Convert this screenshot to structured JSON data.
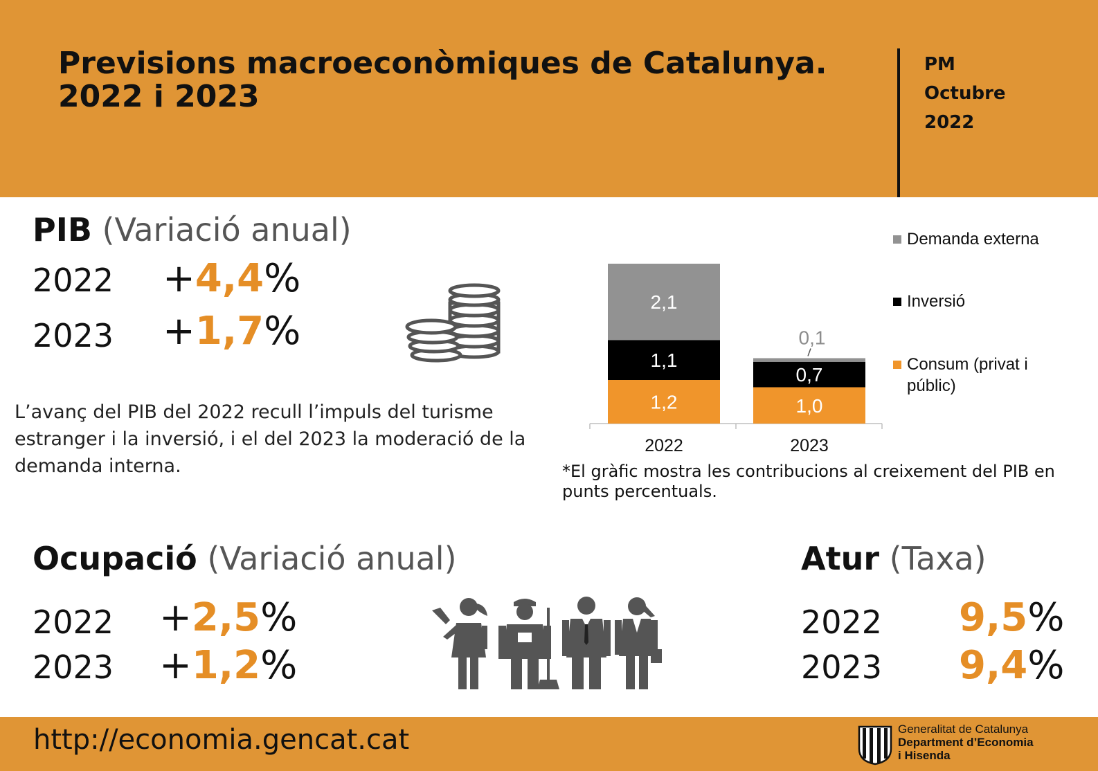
{
  "header": {
    "title_line1": "Previsions macroeconòmiques de Catalunya.",
    "title_line2": "2022 i 2023",
    "meta": [
      "PM",
      "Octubre",
      "2022"
    ]
  },
  "pib": {
    "title": "PIB",
    "subtitle": "(Variació anual)",
    "rows": [
      {
        "year": "2022",
        "sign": "+",
        "value": "4,4",
        "unit": "%"
      },
      {
        "year": "2023",
        "sign": "+",
        "value": "1,7",
        "unit": "%"
      }
    ],
    "description": "L’avanç del PIB del 2022 recull l’impuls del turisme estranger i la inversió, i el del 2023 la moderació de la demanda interna.",
    "note": "*El gràfic mostra les contribucions al creixement del PIB en punts percentuals."
  },
  "ocupacio": {
    "title": "Ocupació",
    "subtitle": "(Variació anual)",
    "rows": [
      {
        "year": "2022",
        "sign": "+",
        "value": "2,5",
        "unit": "%"
      },
      {
        "year": "2023",
        "sign": "+",
        "value": "1,2",
        "unit": "%"
      }
    ]
  },
  "atur": {
    "title": "Atur",
    "subtitle": "(Taxa)",
    "rows": [
      {
        "year": "2022",
        "value": "9,5",
        "unit": "%"
      },
      {
        "year": "2023",
        "value": "9,4",
        "unit": "%"
      }
    ]
  },
  "footer": {
    "url": "http://economia.gencat.cat",
    "logo_line1": "Generalitat de Catalunya",
    "logo_line2": "Department d’Economia",
    "logo_line3": "i Hisenda"
  },
  "icons": {
    "pib": "coins-stack-icon",
    "ocupacio": [
      "girl-icon",
      "worker-icon",
      "businessman-icon",
      "businesswoman-icon"
    ],
    "logo": "generalitat-shield-icon"
  },
  "chart_data": {
    "type": "bar",
    "stacked": true,
    "categories": [
      "2022",
      "2023"
    ],
    "series": [
      {
        "name": "Consum (privat i públic)",
        "values": [
          1.2,
          1.0
        ],
        "labels": [
          "1,2",
          "1,0"
        ],
        "color": "#f0952b"
      },
      {
        "name": "Inversió",
        "values": [
          1.1,
          0.7
        ],
        "labels": [
          "1,1",
          "0,7"
        ],
        "color": "#000000"
      },
      {
        "name": "Demanda externa",
        "values": [
          2.1,
          0.1
        ],
        "labels": [
          "2,1",
          "0,1"
        ],
        "color": "#929292"
      }
    ],
    "legend_position": "right",
    "grid": false
  }
}
